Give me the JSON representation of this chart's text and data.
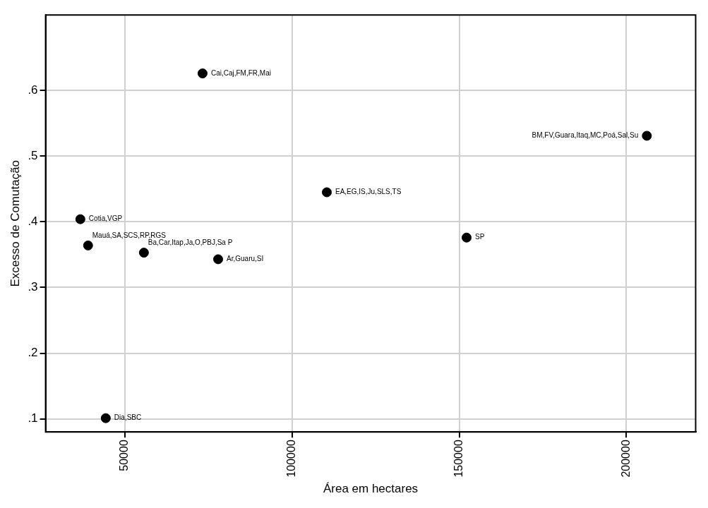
{
  "chart_data": {
    "type": "scatter",
    "xlabel": "Área em hectares",
    "ylabel": "Excesso de Comutação",
    "x": [
      73240,
      206100,
      110400,
      36700,
      39000,
      55700,
      77900,
      152200,
      44300
    ],
    "series": [
      {
        "color": "#000000",
        "values": [
          0.626,
          0.531,
          0.445,
          0.404,
          0.364,
          0.353,
          0.343,
          0.376,
          0.101
        ]
      }
    ],
    "xlim": [
      26300,
      220700
    ],
    "xticks": [
      50000,
      100000,
      150000,
      200000
    ],
    "ylim": [
      0.08,
      0.715
    ],
    "yticks": [
      {
        "value": 0.1,
        "label": ".1"
      },
      {
        "value": 0.2,
        "label": ".2"
      },
      {
        "value": 0.3,
        "label": ".3"
      },
      {
        "value": 0.4,
        "label": ".4"
      },
      {
        "value": 0.5,
        "label": ".5"
      },
      {
        "value": 0.6,
        "label": ".6"
      }
    ],
    "grid": true,
    "marker": "circle",
    "annotations": [
      {
        "text": "Cai,Caj,FM,FR,Mai",
        "x": 73240,
        "y": 0.626
      },
      {
        "text": "BM,FV,Guara,Itaq,MC,Poá,Sal,Su",
        "x": 206100,
        "y": 0.531
      },
      {
        "text": "EA,EG,IS,Ju,SLS,TS",
        "x": 110400,
        "y": 0.445
      },
      {
        "text": "Cotia,VGP",
        "x": 36700,
        "y": 0.404
      },
      {
        "text": "Mauá,SA,SCS,RP,RGS",
        "x": 39000,
        "y": 0.364
      },
      {
        "text": "Ba,Car,Itap,Ja,O,PBJ,Sa P",
        "x": 55700,
        "y": 0.353
      },
      {
        "text": "Ar,Guaru,SI",
        "x": 77900,
        "y": 0.343
      },
      {
        "text": "SP",
        "x": 152200,
        "y": 0.376
      },
      {
        "text": "Dia,SBC",
        "x": 44300,
        "y": 0.101
      }
    ]
  }
}
